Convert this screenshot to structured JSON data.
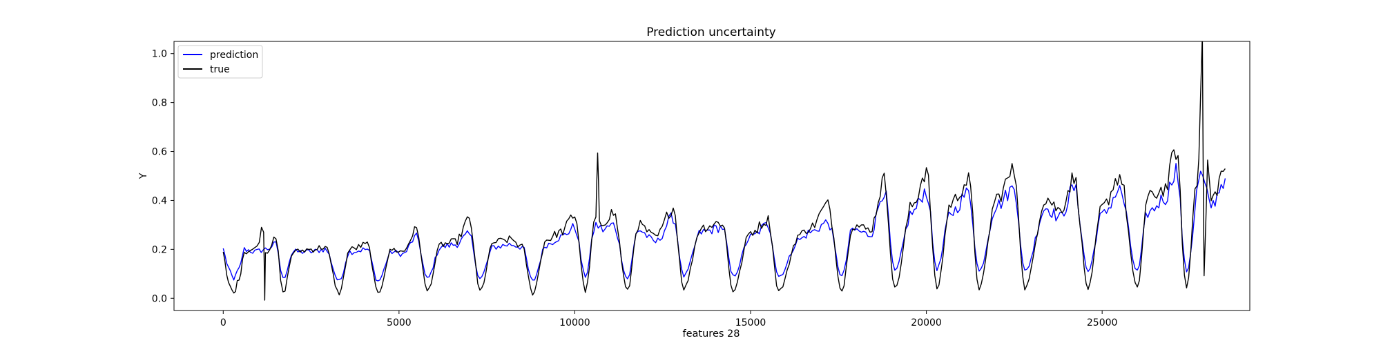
{
  "chart_data": {
    "type": "line",
    "title": "Prediction uncertainty",
    "xlabel": "features 28",
    "ylabel": "Y",
    "xlim": [
      -1400,
      29200
    ],
    "ylim": [
      -0.05,
      1.05
    ],
    "xticks": [
      0,
      5000,
      10000,
      15000,
      20000,
      25000
    ],
    "xtick_labels": [
      "0",
      "5000",
      "10000",
      "15000",
      "20000",
      "25000"
    ],
    "yticks": [
      0.0,
      0.2,
      0.4,
      0.6,
      0.8,
      1.0
    ],
    "ytick_labels": [
      "0.0",
      "0.2",
      "0.4",
      "0.6",
      "0.8",
      "1.0"
    ],
    "grid": false,
    "legend_position": "upper-left",
    "n_points_approx": 28500,
    "series": [
      {
        "name": "prediction",
        "color": "#0000ff",
        "x": [
          0,
          150,
          300,
          450,
          600,
          900,
          1200,
          1500,
          1700,
          2000,
          2500,
          2900,
          3300,
          3600,
          4100,
          4400,
          4800,
          5100,
          5500,
          5800,
          6200,
          6600,
          7000,
          7300,
          7700,
          8200,
          8500,
          8800,
          9200,
          9600,
          10000,
          10300,
          10600,
          10800,
          11100,
          11500,
          11800,
          12300,
          12800,
          13100,
          13600,
          14200,
          14500,
          15000,
          15500,
          15800,
          16400,
          16700,
          17200,
          17600,
          17900,
          18400,
          18800,
          19100,
          19600,
          20000,
          20300,
          20700,
          21200,
          21500,
          22000,
          22500,
          22800,
          23400,
          23800,
          24200,
          24600,
          25000,
          25500,
          26000,
          26300,
          26800,
          27100,
          27400,
          27800,
          28100,
          28500
        ],
        "values": [
          0.2,
          0.12,
          0.08,
          0.12,
          0.2,
          0.19,
          0.2,
          0.22,
          0.08,
          0.19,
          0.19,
          0.2,
          0.07,
          0.19,
          0.2,
          0.07,
          0.19,
          0.18,
          0.25,
          0.08,
          0.21,
          0.22,
          0.26,
          0.08,
          0.21,
          0.22,
          0.21,
          0.07,
          0.22,
          0.25,
          0.29,
          0.09,
          0.3,
          0.28,
          0.3,
          0.08,
          0.28,
          0.23,
          0.33,
          0.09,
          0.27,
          0.29,
          0.09,
          0.25,
          0.3,
          0.09,
          0.24,
          0.27,
          0.31,
          0.09,
          0.28,
          0.26,
          0.44,
          0.11,
          0.35,
          0.44,
          0.12,
          0.35,
          0.43,
          0.11,
          0.38,
          0.45,
          0.11,
          0.37,
          0.33,
          0.45,
          0.11,
          0.34,
          0.44,
          0.11,
          0.35,
          0.41,
          0.53,
          0.11,
          0.5,
          0.38,
          0.49
        ]
      },
      {
        "name": "true",
        "color": "#000000",
        "x": [
          0,
          150,
          300,
          450,
          600,
          900,
          1150,
          1180,
          1200,
          1500,
          1700,
          2000,
          2500,
          2900,
          3300,
          3600,
          4100,
          4400,
          4800,
          5100,
          5500,
          5800,
          6200,
          6600,
          7000,
          7300,
          7700,
          8200,
          8500,
          8800,
          9200,
          9600,
          10000,
          10300,
          10600,
          10650,
          10700,
          11100,
          11500,
          11800,
          12300,
          12800,
          13100,
          13600,
          14200,
          14500,
          15000,
          15500,
          15800,
          16400,
          16700,
          17200,
          17600,
          17900,
          18400,
          18800,
          19100,
          19600,
          20000,
          20300,
          20700,
          21200,
          21500,
          22000,
          22500,
          22800,
          23400,
          23800,
          24200,
          24600,
          25000,
          25500,
          26000,
          26300,
          26800,
          27100,
          27400,
          27700,
          27850,
          27900,
          28000,
          28100,
          28500
        ],
        "values": [
          0.18,
          0.06,
          0.02,
          0.08,
          0.19,
          0.2,
          0.29,
          0.0,
          0.19,
          0.24,
          0.02,
          0.19,
          0.2,
          0.21,
          0.02,
          0.2,
          0.22,
          0.02,
          0.2,
          0.19,
          0.28,
          0.03,
          0.22,
          0.23,
          0.32,
          0.03,
          0.23,
          0.24,
          0.21,
          0.02,
          0.24,
          0.27,
          0.34,
          0.03,
          0.33,
          0.59,
          0.3,
          0.35,
          0.03,
          0.3,
          0.25,
          0.37,
          0.04,
          0.29,
          0.31,
          0.03,
          0.27,
          0.32,
          0.03,
          0.26,
          0.29,
          0.38,
          0.03,
          0.3,
          0.28,
          0.48,
          0.04,
          0.38,
          0.52,
          0.04,
          0.39,
          0.48,
          0.04,
          0.41,
          0.52,
          0.04,
          0.41,
          0.36,
          0.49,
          0.04,
          0.37,
          0.5,
          0.04,
          0.41,
          0.45,
          0.61,
          0.04,
          0.49,
          1.0,
          0.09,
          0.55,
          0.4,
          0.53
        ]
      }
    ]
  }
}
